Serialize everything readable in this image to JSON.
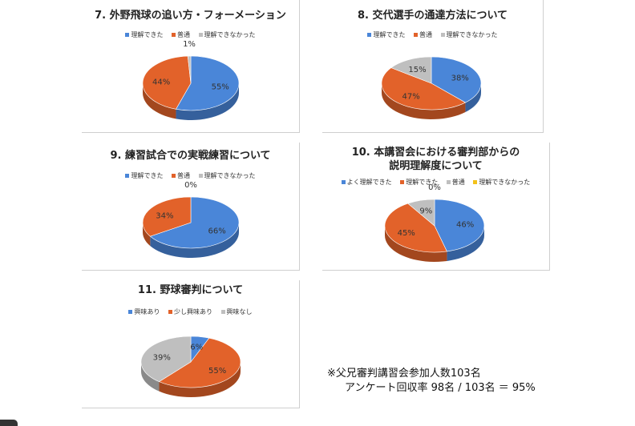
{
  "charts": [
    {
      "title_lines": [
        "7. 外野飛球の追い方・フォーメーション"
      ],
      "legend": [
        {
          "label": "理解できた",
          "color": "#4a86d8"
        },
        {
          "label": "普通",
          "color": "#e2622a"
        },
        {
          "label": "理解できなかった",
          "color": "#bfbfbf"
        }
      ]
    },
    {
      "title_lines": [
        "8. 交代選手の通達方法について"
      ],
      "legend": [
        {
          "label": "理解できた",
          "color": "#4a86d8"
        },
        {
          "label": "普通",
          "color": "#e2622a"
        },
        {
          "label": "理解できなかった",
          "color": "#bfbfbf"
        }
      ]
    },
    {
      "title_lines": [
        "9. 練習試合での実戦練習について"
      ],
      "legend": [
        {
          "label": "理解できた",
          "color": "#4a86d8"
        },
        {
          "label": "普通",
          "color": "#e2622a"
        },
        {
          "label": "理解できなかった",
          "color": "#bfbfbf"
        }
      ]
    },
    {
      "title_lines": [
        "10. 本講習会における審判部からの",
        "説明理解度について"
      ],
      "legend": [
        {
          "label": "よく理解できた",
          "color": "#4a86d8"
        },
        {
          "label": "理解できた",
          "color": "#e2622a"
        },
        {
          "label": "普通",
          "color": "#bfbfbf"
        },
        {
          "label": "理解できなかった",
          "color": "#f3c21a"
        }
      ]
    },
    {
      "title_lines": [
        "11. 野球審判について"
      ],
      "legend": [
        {
          "label": "興味あり",
          "color": "#4a86d8"
        },
        {
          "label": "少し興味あり",
          "color": "#e2622a"
        },
        {
          "label": "興味なし",
          "color": "#bfbfbf"
        }
      ]
    }
  ],
  "chart_data": [
    {
      "type": "pie",
      "title": "7. 外野飛球の追い方・フォーメーション",
      "categories": [
        "理解できた",
        "普通",
        "理解できなかった"
      ],
      "values": [
        55,
        44,
        1
      ],
      "labels": [
        "55%",
        "44%",
        "1%"
      ],
      "colors": [
        "#4a86d8",
        "#e2622a",
        "#bfbfbf"
      ],
      "legend": "top"
    },
    {
      "type": "pie",
      "title": "8. 交代選手の通達方法について",
      "categories": [
        "理解できた",
        "普通",
        "理解できなかった"
      ],
      "values": [
        38,
        47,
        15
      ],
      "labels": [
        "38%",
        "47%",
        "15%"
      ],
      "colors": [
        "#4a86d8",
        "#e2622a",
        "#bfbfbf"
      ],
      "legend": "top"
    },
    {
      "type": "pie",
      "title": "9. 練習試合での実戦練習について",
      "categories": [
        "理解できた",
        "普通",
        "理解できなかった"
      ],
      "values": [
        66,
        34,
        0
      ],
      "labels": [
        "66%",
        "34%",
        "0%"
      ],
      "colors": [
        "#4a86d8",
        "#e2622a",
        "#bfbfbf"
      ],
      "legend": "top"
    },
    {
      "type": "pie",
      "title": "10. 本講習会における審判部からの説明理解度について",
      "categories": [
        "よく理解できた",
        "理解できた",
        "普通",
        "理解できなかった"
      ],
      "values": [
        46,
        45,
        9,
        0
      ],
      "labels": [
        "46%",
        "45%",
        "9%",
        "0%"
      ],
      "colors": [
        "#4a86d8",
        "#e2622a",
        "#bfbfbf",
        "#f3c21a"
      ],
      "legend": "top"
    },
    {
      "type": "pie",
      "title": "11. 野球審判について",
      "categories": [
        "興味あり",
        "少し興味あり",
        "興味なし"
      ],
      "values": [
        6,
        55,
        39
      ],
      "labels": [
        "6%",
        "55%",
        "39%"
      ],
      "colors": [
        "#4a86d8",
        "#e2622a",
        "#bfbfbf"
      ],
      "legend": "top"
    }
  ],
  "note": {
    "line1": "※父兄審判講習会参加人数103名",
    "line2": "アンケート回収率 98名 / 103名 ＝ 95%"
  }
}
